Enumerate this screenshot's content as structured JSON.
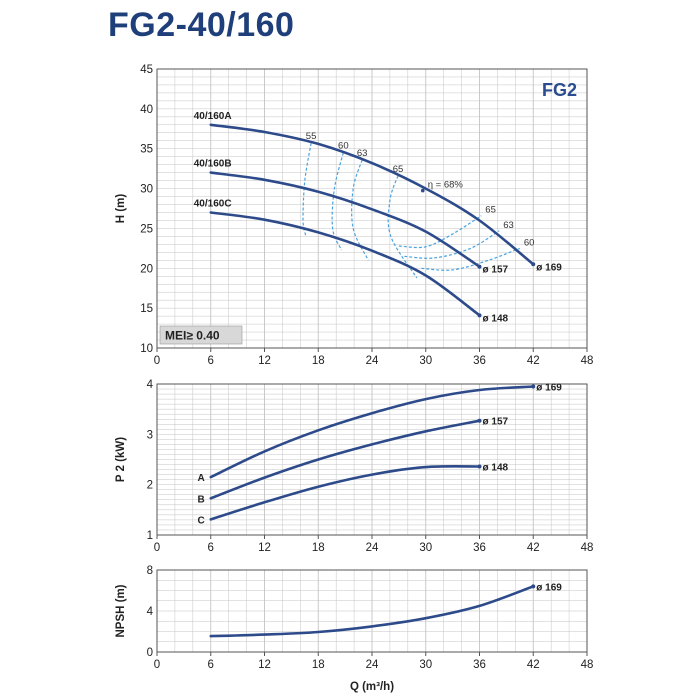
{
  "title": "FG2-40/160",
  "colors": {
    "title": "#1f3f7a",
    "curve": "#2d4a8a",
    "efficiency": "#4aa3df",
    "grid": "#c4c4c4",
    "frame": "#555555",
    "mei_box": "#d8d8d8"
  },
  "chart_data": [
    {
      "id": "head",
      "type": "line",
      "ylabel": "H (m)",
      "xlim": [
        0,
        48
      ],
      "ylim": [
        10,
        45
      ],
      "xticks": [
        "0",
        "6",
        "12",
        "18",
        "24",
        "30",
        "36",
        "42",
        "48"
      ],
      "yticks": [
        "10",
        "15",
        "20",
        "25",
        "30",
        "35",
        "40",
        "45"
      ],
      "grid": true,
      "badge": "FG2",
      "mei_label": "MEI≥ 0.40",
      "series": [
        {
          "name": "40/160A",
          "end_label": "ø 169",
          "points": [
            [
              6,
              38
            ],
            [
              12,
              37.1
            ],
            [
              18,
              35.6
            ],
            [
              24,
              33.2
            ],
            [
              30,
              30.0
            ],
            [
              36,
              26.0
            ],
            [
              42,
              20.5
            ]
          ]
        },
        {
          "name": "40/160B",
          "end_label": "ø 157",
          "points": [
            [
              6,
              32
            ],
            [
              12,
              31.1
            ],
            [
              18,
              29.6
            ],
            [
              24,
              27.4
            ],
            [
              30,
              24.6
            ],
            [
              36,
              20.2
            ]
          ]
        },
        {
          "name": "40/160C",
          "end_label": "ø 148",
          "points": [
            [
              6,
              27
            ],
            [
              12,
              26.1
            ],
            [
              18,
              24.5
            ],
            [
              24,
              22.2
            ],
            [
              30,
              19.1
            ],
            [
              36,
              14.1
            ]
          ]
        }
      ],
      "efficiency_contours": [
        {
          "label": "55",
          "points": [
            [
              17.2,
              35.7
            ],
            [
              16.5,
              31
            ],
            [
              16.3,
              26
            ],
            [
              16.6,
              24.1
            ]
          ]
        },
        {
          "label": "60",
          "points": [
            [
              20.8,
              34.5
            ],
            [
              19.8,
              30
            ],
            [
              19.6,
              25
            ],
            [
              20.6,
              22.3
            ]
          ]
        },
        {
          "label": "63",
          "points": [
            [
              22.9,
              33.6
            ],
            [
              21.9,
              30
            ],
            [
              21.9,
              25
            ],
            [
              23.6,
              21
            ]
          ]
        },
        {
          "label": "65",
          "points": [
            [
              26.9,
              31.6
            ],
            [
              26,
              28.5
            ],
            [
              26.1,
              24
            ],
            [
              29,
              18.8
            ]
          ]
        },
        {
          "label": "65",
          "points": [
            [
              27,
              22.8
            ],
            [
              30,
              22.7
            ],
            [
              33,
              24.3
            ],
            [
              36.2,
              26.6
            ]
          ]
        },
        {
          "label": "63",
          "points": [
            [
              27.6,
              21.5
            ],
            [
              31,
              21.3
            ],
            [
              35,
              22.5
            ],
            [
              38.2,
              24.7
            ]
          ]
        },
        {
          "label": "60",
          "points": [
            [
              29.5,
              20
            ],
            [
              33,
              19.8
            ],
            [
              37,
              21
            ],
            [
              40.5,
              22.5
            ]
          ]
        }
      ],
      "efficiency_best": {
        "label": "η = 68%",
        "at": [
          30,
          30
        ]
      }
    },
    {
      "id": "power",
      "type": "line",
      "ylabel": "P 2 (kW)",
      "xlim": [
        0,
        48
      ],
      "ylim": [
        1,
        4
      ],
      "xticks": [
        "0",
        "6",
        "12",
        "18",
        "24",
        "30",
        "36",
        "42",
        "48"
      ],
      "yticks": [
        "1",
        "2",
        "3",
        "4"
      ],
      "grid": true,
      "series": [
        {
          "name": "A",
          "end_label": "ø 169",
          "points": [
            [
              6,
              2.15
            ],
            [
              12,
              2.66
            ],
            [
              18,
              3.08
            ],
            [
              24,
              3.42
            ],
            [
              30,
              3.7
            ],
            [
              36,
              3.88
            ],
            [
              42,
              3.95
            ]
          ]
        },
        {
          "name": "B",
          "end_label": "ø 157",
          "points": [
            [
              6,
              1.73
            ],
            [
              12,
              2.14
            ],
            [
              18,
              2.5
            ],
            [
              24,
              2.8
            ],
            [
              30,
              3.06
            ],
            [
              36,
              3.27
            ]
          ]
        },
        {
          "name": "C",
          "end_label": "ø 148",
          "points": [
            [
              6,
              1.31
            ],
            [
              12,
              1.65
            ],
            [
              18,
              1.96
            ],
            [
              24,
              2.2
            ],
            [
              30,
              2.35
            ],
            [
              36,
              2.36
            ]
          ]
        }
      ]
    },
    {
      "id": "npsh",
      "type": "line",
      "ylabel": "NPSH (m)",
      "xlabel": "Q (m³/h)",
      "xlim": [
        0,
        48
      ],
      "ylim": [
        0,
        8
      ],
      "xticks": [
        "0",
        "6",
        "12",
        "18",
        "24",
        "30",
        "36",
        "42",
        "48"
      ],
      "yticks": [
        "0",
        "4",
        "8"
      ],
      "grid": true,
      "series": [
        {
          "name": "",
          "end_label": "ø 169",
          "points": [
            [
              6,
              1.55
            ],
            [
              12,
              1.7
            ],
            [
              18,
              1.95
            ],
            [
              24,
              2.5
            ],
            [
              30,
              3.3
            ],
            [
              36,
              4.5
            ],
            [
              42,
              6.4
            ]
          ]
        }
      ]
    }
  ]
}
